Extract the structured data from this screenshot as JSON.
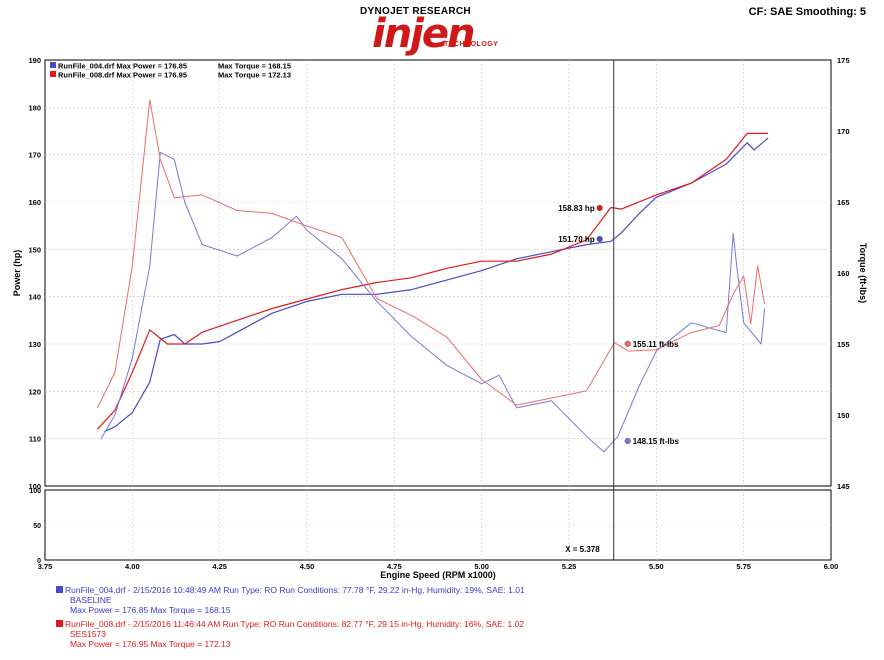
{
  "header": {
    "logo_top": "DYNOJET RESEARCH",
    "logo_main": "injen",
    "logo_sub": "TECHNOLOGY",
    "settings": "CF: SAE  Smoothing: 5"
  },
  "legend": [
    {
      "label": "RunFile_004.drf Max Power = 176.85",
      "torque": "Max Torque = 168.15",
      "color": "#4a4acb"
    },
    {
      "label": "RunFile_008.drf Max Power = 176.95",
      "torque": "Max Torque = 172.13",
      "color": "#e01a1a"
    }
  ],
  "annotations": {
    "red_power": "158.83 hp",
    "blue_power": "151.70 hp",
    "red_torque": "155.11 ft-lbs",
    "blue_torque": "148.15 ft-lbs",
    "cursor": "X = 5.378"
  },
  "footer": [
    {
      "line1": "RunFile_004.drf - 2/15/2016 10:48:49 AM  Run Type: RO  Run Conditions: 77.78 °F, 29.22 in-Hg,  Humidity:  19%, SAE: 1.01",
      "line2": "BASELINE",
      "line3": "Max Power = 176.85  Max Torque = 168.15",
      "color": "#3a3acb"
    },
    {
      "line1": "RunFile_008.drf - 2/15/2016 11:46:44 AM  Run Type: RO  Run Conditions: 82.77 °F, 29.15 in-Hg,  Humidity:  16%, SAE: 1.02",
      "line2": "SES1573",
      "line3": "Max Power = 176.95  Max Torque = 172.13",
      "color": "#e01a1a"
    }
  ],
  "chart_data": {
    "type": "line",
    "xlabel": "Engine Speed (RPM x1000)",
    "ylabel_left": "Power (hp)",
    "ylabel_right": "Torque (ft-lbs)",
    "xlim": [
      3.75,
      6.0
    ],
    "ylim_left": [
      100,
      190
    ],
    "ylim_right": [
      145,
      175
    ],
    "xticks": [
      "3.75",
      "4.00",
      "4.25",
      "4.50",
      "4.75",
      "5.00",
      "5.25",
      "5.50",
      "5.75",
      "6.00"
    ],
    "yticks_left": [
      "100",
      "110",
      "120",
      "130",
      "140",
      "150",
      "160",
      "170",
      "180",
      "190"
    ],
    "yticks_right": [
      "145",
      "150",
      "155",
      "160",
      "165",
      "170",
      "175"
    ],
    "sub_yticks": [
      "0",
      "50",
      "100"
    ],
    "cursor_x": 5.378,
    "grid": true,
    "series": [
      {
        "name": "RunFile_004.drf",
        "quantity": "power",
        "axis": "left",
        "color": "#4a4acb",
        "points": [
          [
            3.92,
            111.5
          ],
          [
            3.95,
            112.5
          ],
          [
            4.0,
            115.5
          ],
          [
            4.05,
            122
          ],
          [
            4.08,
            131
          ],
          [
            4.12,
            132
          ],
          [
            4.15,
            130
          ],
          [
            4.2,
            130
          ],
          [
            4.25,
            130.5
          ],
          [
            4.3,
            132.5
          ],
          [
            4.4,
            136.5
          ],
          [
            4.5,
            139
          ],
          [
            4.6,
            140.5
          ],
          [
            4.7,
            140.5
          ],
          [
            4.8,
            141.5
          ],
          [
            4.9,
            143.5
          ],
          [
            5.0,
            145.5
          ],
          [
            5.1,
            148
          ],
          [
            5.2,
            149.5
          ],
          [
            5.3,
            151
          ],
          [
            5.37,
            151.7
          ],
          [
            5.4,
            153.5
          ],
          [
            5.45,
            157.5
          ],
          [
            5.5,
            161
          ],
          [
            5.6,
            164
          ],
          [
            5.7,
            168
          ],
          [
            5.76,
            172.5
          ],
          [
            5.78,
            171
          ],
          [
            5.82,
            173.5
          ]
        ]
      },
      {
        "name": "RunFile_008.drf",
        "quantity": "power",
        "axis": "left",
        "color": "#e01a1a",
        "points": [
          [
            3.9,
            112
          ],
          [
            3.95,
            116
          ],
          [
            4.0,
            124
          ],
          [
            4.05,
            133
          ],
          [
            4.1,
            130
          ],
          [
            4.15,
            130
          ],
          [
            4.2,
            132.5
          ],
          [
            4.3,
            135
          ],
          [
            4.4,
            137.5
          ],
          [
            4.5,
            139.5
          ],
          [
            4.6,
            141.5
          ],
          [
            4.7,
            143
          ],
          [
            4.8,
            144
          ],
          [
            4.9,
            146
          ],
          [
            5.0,
            147.5
          ],
          [
            5.1,
            147.5
          ],
          [
            5.2,
            149
          ],
          [
            5.3,
            152
          ],
          [
            5.37,
            158.83
          ],
          [
            5.4,
            158.5
          ],
          [
            5.45,
            160
          ],
          [
            5.5,
            161.5
          ],
          [
            5.6,
            164
          ],
          [
            5.7,
            169
          ],
          [
            5.76,
            174.5
          ],
          [
            5.82,
            174.5
          ]
        ]
      },
      {
        "name": "RunFile_004.drf",
        "quantity": "torque",
        "axis": "right",
        "color": "#7878d6",
        "points": [
          [
            3.91,
            148.3
          ],
          [
            3.95,
            150
          ],
          [
            4.0,
            154
          ],
          [
            4.05,
            160.5
          ],
          [
            4.08,
            168.5
          ],
          [
            4.12,
            168
          ],
          [
            4.15,
            165
          ],
          [
            4.2,
            162
          ],
          [
            4.3,
            161.2
          ],
          [
            4.4,
            162.5
          ],
          [
            4.47,
            164
          ],
          [
            4.5,
            163
          ],
          [
            4.6,
            161
          ],
          [
            4.7,
            158
          ],
          [
            4.8,
            155.5
          ],
          [
            4.9,
            153.5
          ],
          [
            5.0,
            152.2
          ],
          [
            5.05,
            152.8
          ],
          [
            5.1,
            150.5
          ],
          [
            5.2,
            151
          ],
          [
            5.3,
            148.5
          ],
          [
            5.35,
            147.4
          ],
          [
            5.39,
            148.5
          ],
          [
            5.45,
            152
          ],
          [
            5.5,
            154.5
          ],
          [
            5.6,
            156.5
          ],
          [
            5.7,
            155.8
          ],
          [
            5.72,
            162.8
          ],
          [
            5.73,
            160.5
          ],
          [
            5.75,
            156.5
          ],
          [
            5.8,
            155
          ],
          [
            5.81,
            157.5
          ]
        ]
      },
      {
        "name": "RunFile_008.drf",
        "quantity": "torque",
        "axis": "right",
        "color": "#ef6a6a",
        "points": [
          [
            3.9,
            150.5
          ],
          [
            3.95,
            153
          ],
          [
            4.0,
            160.5
          ],
          [
            4.05,
            172.2
          ],
          [
            4.08,
            168
          ],
          [
            4.12,
            165.3
          ],
          [
            4.2,
            165.5
          ],
          [
            4.3,
            164.4
          ],
          [
            4.4,
            164.2
          ],
          [
            4.5,
            163.3
          ],
          [
            4.6,
            162.5
          ],
          [
            4.7,
            158.2
          ],
          [
            4.8,
            157
          ],
          [
            4.9,
            155.5
          ],
          [
            5.0,
            152.5
          ],
          [
            5.1,
            150.7
          ],
          [
            5.2,
            151.2
          ],
          [
            5.3,
            151.7
          ],
          [
            5.38,
            155.1
          ],
          [
            5.42,
            154.5
          ],
          [
            5.5,
            154.6
          ],
          [
            5.6,
            155.8
          ],
          [
            5.68,
            156.3
          ],
          [
            5.72,
            158.5
          ],
          [
            5.75,
            159.8
          ],
          [
            5.77,
            156.4
          ],
          [
            5.79,
            160.5
          ],
          [
            5.81,
            157.8
          ]
        ]
      }
    ]
  }
}
